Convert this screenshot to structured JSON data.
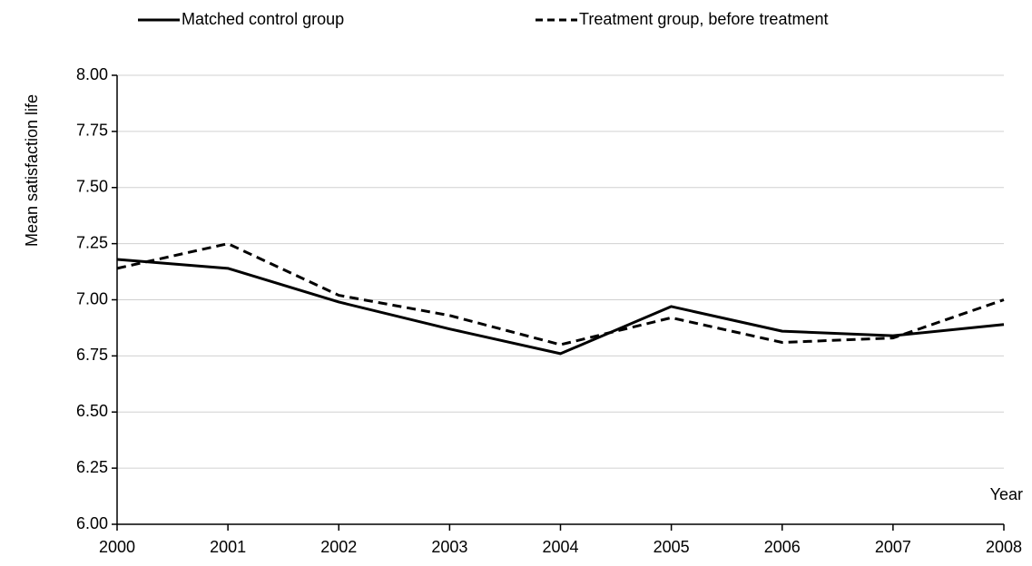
{
  "chart_data": {
    "type": "line",
    "y_label": "Mean satisfaction life",
    "x_label": "Year",
    "x": [
      2000,
      2001,
      2002,
      2003,
      2004,
      2005,
      2006,
      2007,
      2008
    ],
    "xlim": [
      2000,
      2008
    ],
    "xticks": [
      2000,
      2001,
      2002,
      2003,
      2004,
      2005,
      2006,
      2007,
      2008
    ],
    "ylim": [
      6,
      8
    ],
    "yticks": [
      {
        "value": 6,
        "label": "6.00"
      },
      {
        "value": 6.25,
        "label": "6.25"
      },
      {
        "value": 6.5,
        "label": "6.50"
      },
      {
        "value": 6.75,
        "label": "6.75"
      },
      {
        "value": 7,
        "label": "7.00"
      },
      {
        "value": 7.25,
        "label": "7.25"
      },
      {
        "value": 7.5,
        "label": "7.50"
      },
      {
        "value": 7.75,
        "label": "7.75"
      },
      {
        "value": 8,
        "label": "8.00"
      }
    ],
    "grid": true,
    "legend": "top",
    "series": [
      {
        "name": "Matched control group",
        "color": "#000000",
        "dash": "solid",
        "values": [
          7.18,
          7.14,
          6.99,
          6.87,
          6.76,
          6.97,
          6.86,
          6.84,
          6.89
        ]
      },
      {
        "name": "Treatment group, before treatment",
        "color": "#000000",
        "dash": "dashed",
        "values": [
          7.14,
          7.25,
          7.02,
          6.93,
          6.8,
          6.92,
          6.81,
          6.83,
          7.0
        ]
      }
    ]
  }
}
